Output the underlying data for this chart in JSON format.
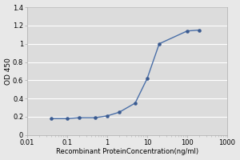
{
  "x": [
    0.04,
    0.1,
    0.2,
    0.5,
    1.0,
    2.0,
    5.0,
    10.0,
    20.0,
    100.0,
    200.0
  ],
  "y": [
    0.18,
    0.18,
    0.19,
    0.19,
    0.21,
    0.25,
    0.35,
    0.62,
    1.0,
    1.14,
    1.15
  ],
  "line_color": "#4a6fa8",
  "marker_color": "#3a5a90",
  "marker_style": "o",
  "marker_size": 2.8,
  "line_width": 1.0,
  "xlabel": "Recombinant ProteinConcentration(ng/ml)",
  "ylabel": "OD 450",
  "xlim": [
    0.01,
    1000
  ],
  "ylim": [
    0,
    1.4
  ],
  "yticks": [
    0,
    0.2,
    0.4,
    0.6,
    0.8,
    1.0,
    1.2,
    1.4
  ],
  "xticks": [
    0.01,
    0.1,
    1,
    10,
    100,
    1000
  ],
  "xtick_labels": [
    "0.01",
    "0.1",
    "1",
    "10",
    "100",
    "1000"
  ],
  "fig_facecolor": "#e8e8e8",
  "axes_facecolor": "#dcdcdc",
  "grid_color": "#ffffff",
  "xlabel_fontsize": 6.0,
  "ylabel_fontsize": 6.5,
  "tick_fontsize": 6.0,
  "spine_color": "#aaaaaa"
}
